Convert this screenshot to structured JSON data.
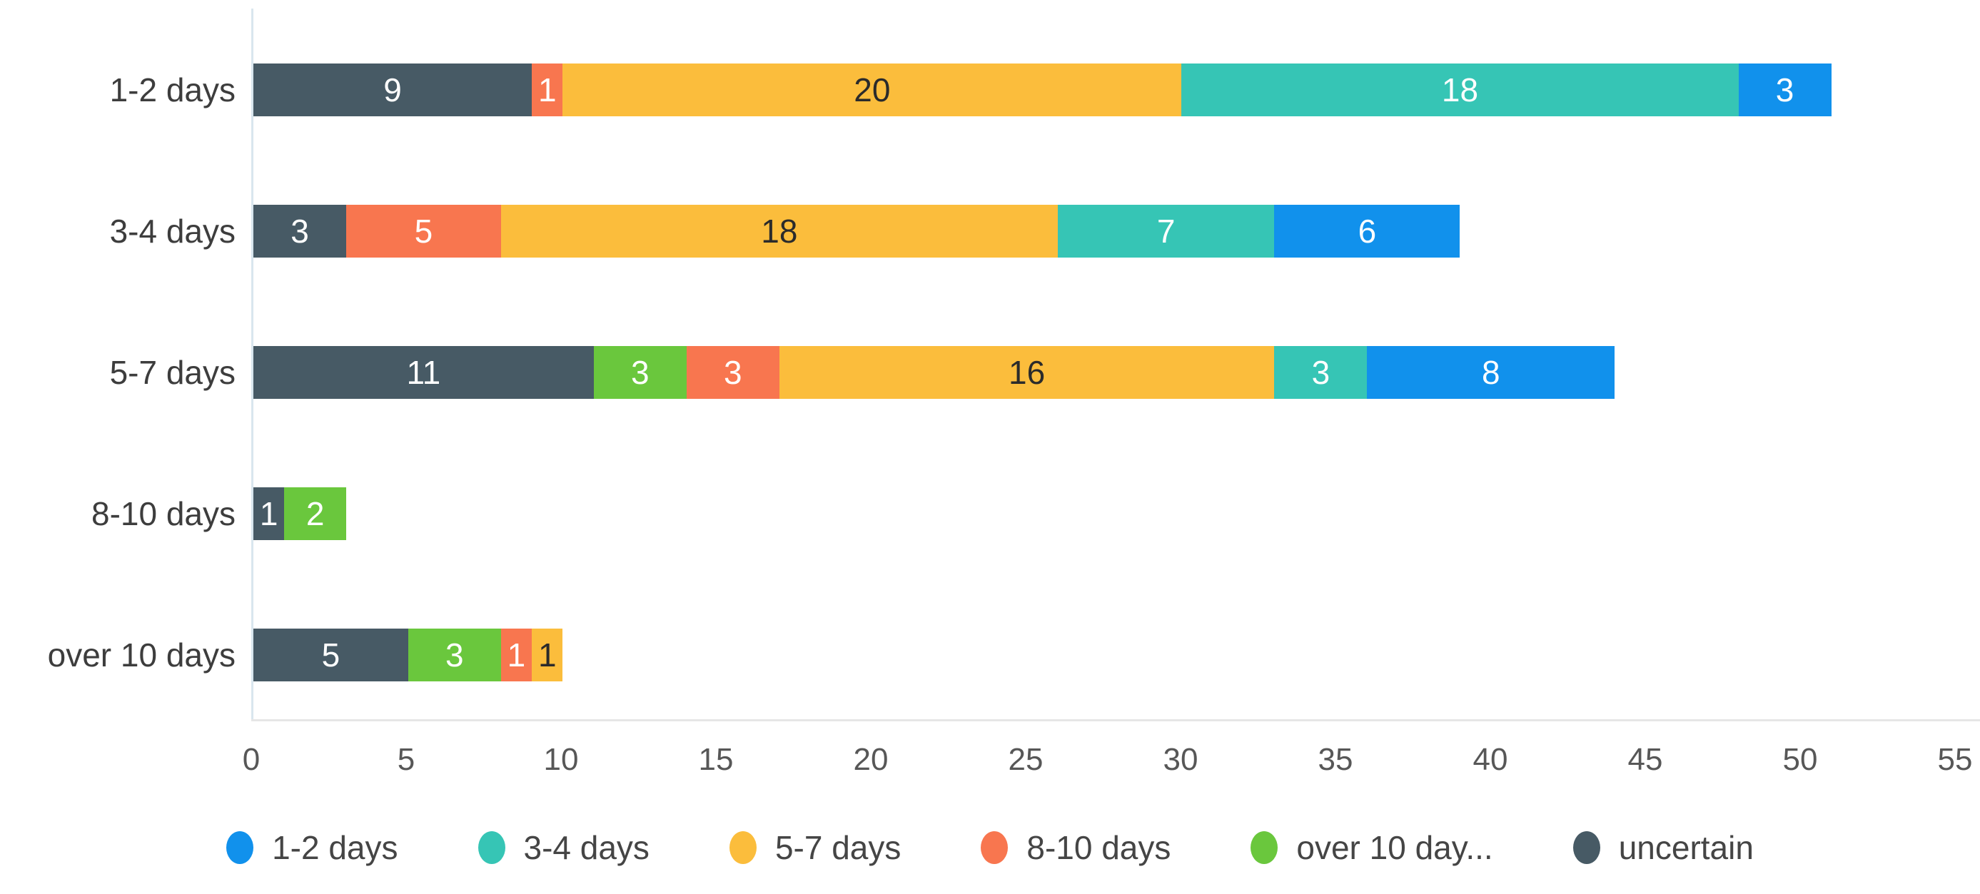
{
  "chart_data": {
    "type": "bar",
    "stacked": true,
    "orientation": "horizontal",
    "title": "",
    "xlabel": "",
    "ylabel": "",
    "xlim": [
      0,
      55
    ],
    "grid": false,
    "legend_position": "bottom",
    "x_ticks": [
      "0",
      "5",
      "10",
      "15",
      "20",
      "25",
      "30",
      "35",
      "40",
      "45",
      "50",
      "55"
    ],
    "categories": [
      "1-2 days",
      "3-4 days",
      "5-7 days",
      "8-10 days",
      "over 10 days"
    ],
    "series": [
      {
        "key": "uncertain",
        "name": "uncertain",
        "color": "#475a65",
        "label_color": "#ffffff",
        "values": [
          9,
          3,
          11,
          1,
          5
        ]
      },
      {
        "key": "over-10-days",
        "name": "over 10 day...",
        "color": "#6ac73d",
        "label_color": "#ffffff",
        "values": [
          0,
          0,
          3,
          2,
          3
        ]
      },
      {
        "key": "8-10-days",
        "name": "8-10 days",
        "color": "#f8764f",
        "label_color": "#ffffff",
        "values": [
          1,
          5,
          3,
          0,
          1
        ]
      },
      {
        "key": "5-7-days",
        "name": "5-7 days",
        "color": "#fbbd3c",
        "label_color": "#2b2b2b",
        "values": [
          20,
          18,
          16,
          0,
          1
        ]
      },
      {
        "key": "3-4-days",
        "name": "3-4 days",
        "color": "#36c5b5",
        "label_color": "#ffffff",
        "values": [
          18,
          7,
          3,
          0,
          0
        ]
      },
      {
        "key": "1-2-days",
        "name": "1-2 days",
        "color": "#1191ec",
        "label_color": "#ffffff",
        "values": [
          3,
          6,
          8,
          0,
          0
        ]
      }
    ],
    "legend": [
      {
        "key": "1-2-days",
        "label": "1-2 days",
        "color": "#1191ec"
      },
      {
        "key": "3-4-days",
        "label": "3-4 days",
        "color": "#36c5b5"
      },
      {
        "key": "5-7-days",
        "label": "5-7 days",
        "color": "#fbbd3c"
      },
      {
        "key": "8-10-days",
        "label": "8-10 days",
        "color": "#f8764f"
      },
      {
        "key": "over-10-days",
        "label": "over 10 day...",
        "color": "#6ac73d"
      },
      {
        "key": "uncertain",
        "label": "uncertain",
        "color": "#475a65"
      }
    ]
  }
}
